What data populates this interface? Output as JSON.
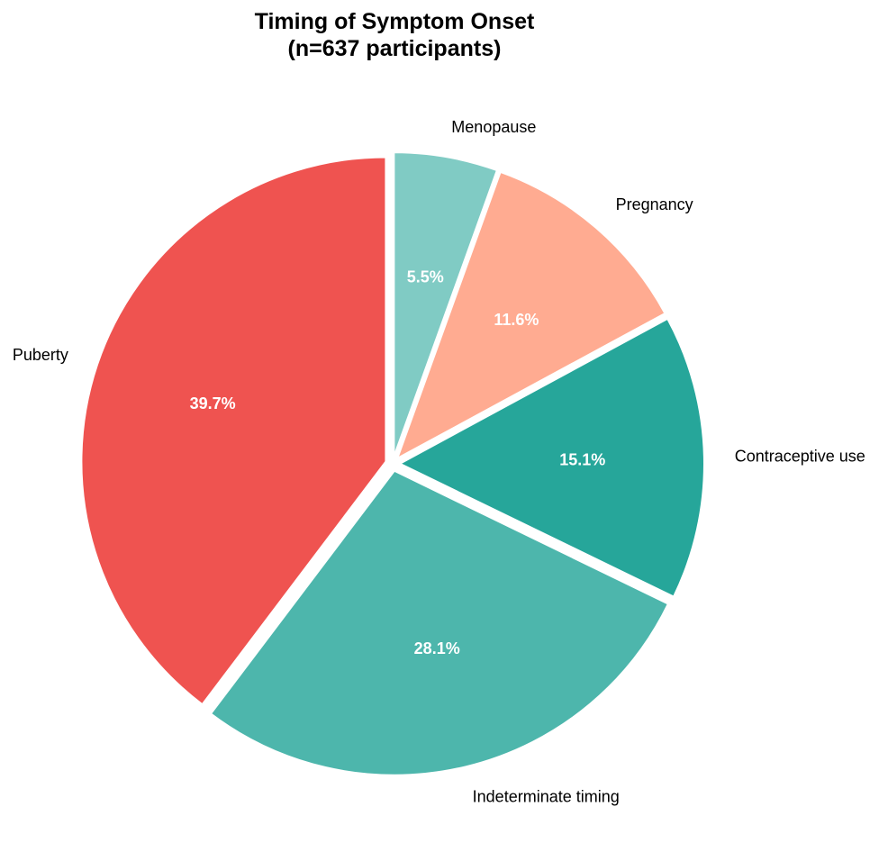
{
  "chart_data": {
    "type": "pie",
    "title": "Timing of Symptom Onset",
    "subtitle": "(n=637 participants)",
    "start_angle_deg": 90,
    "direction": "clockwise",
    "slices": [
      {
        "label": "Menopause",
        "value": 5.5,
        "pct_label": "5.5%",
        "color": "#80CBC4",
        "explode": true
      },
      {
        "label": "Pregnancy",
        "value": 11.6,
        "pct_label": "11.6%",
        "color": "#FFAB91",
        "explode": true
      },
      {
        "label": "Contraceptive use",
        "value": 15.1,
        "pct_label": "15.1%",
        "color": "#26A69A",
        "explode": true
      },
      {
        "label": "Indeterminate timing",
        "value": 28.1,
        "pct_label": "28.1%",
        "color": "#4DB6AC",
        "explode": true
      },
      {
        "label": "Puberty",
        "value": 39.7,
        "pct_label": "39.7%",
        "color": "#EF5350",
        "explode": true
      }
    ]
  }
}
